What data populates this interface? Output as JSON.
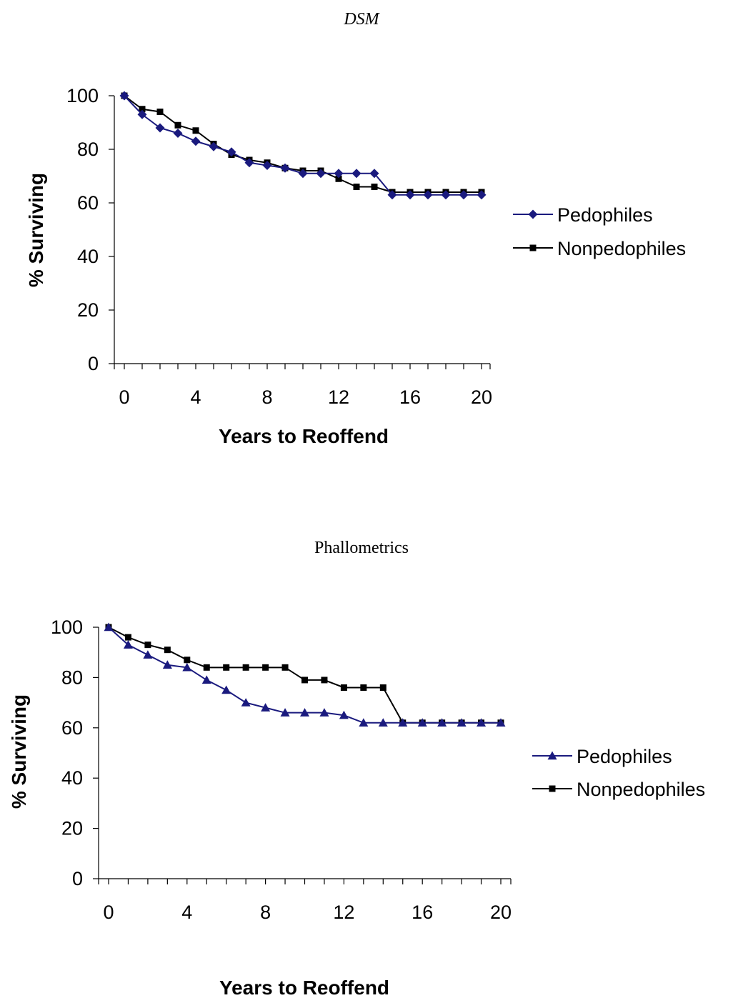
{
  "chart_data": [
    {
      "type": "line",
      "title": "DSM",
      "xlabel": "Years to Reoffend",
      "ylabel": "% Surviving",
      "xlim": [
        0,
        20
      ],
      "ylim": [
        0,
        100
      ],
      "x_ticks": [
        "0",
        "4",
        "8",
        "12",
        "16",
        "20"
      ],
      "y_ticks": [
        "0",
        "20",
        "40",
        "60",
        "80",
        "100"
      ],
      "legend_position": "right",
      "x": [
        0,
        1,
        2,
        3,
        4,
        5,
        6,
        7,
        8,
        9,
        10,
        11,
        12,
        13,
        14,
        15,
        16,
        17,
        18,
        19,
        20
      ],
      "series": [
        {
          "name": "Pedophiles",
          "marker": "diamond",
          "color": "#1a1a7e",
          "values": [
            100,
            93,
            88,
            86,
            83,
            81,
            79,
            75,
            74,
            73,
            71,
            71,
            71,
            71,
            71,
            63,
            63,
            63,
            63,
            63,
            63
          ]
        },
        {
          "name": "Nonpedophiles",
          "marker": "square",
          "color": "#000000",
          "values": [
            100,
            95,
            94,
            89,
            87,
            82,
            78,
            76,
            75,
            73,
            72,
            72,
            69,
            66,
            66,
            64,
            64,
            64,
            64,
            64,
            64
          ]
        }
      ]
    },
    {
      "type": "line",
      "title": "Phallometrics",
      "xlabel": "Years to Reoffend",
      "ylabel": "% Surviving",
      "xlim": [
        0,
        20
      ],
      "ylim": [
        0,
        100
      ],
      "x_ticks": [
        "0",
        "4",
        "8",
        "12",
        "16",
        "20"
      ],
      "y_ticks": [
        "0",
        "20",
        "40",
        "60",
        "80",
        "100"
      ],
      "legend_position": "right",
      "x": [
        0,
        1,
        2,
        3,
        4,
        5,
        6,
        7,
        8,
        9,
        10,
        11,
        12,
        13,
        14,
        15,
        16,
        17,
        18,
        19,
        20
      ],
      "series": [
        {
          "name": "Pedophiles",
          "marker": "triangle",
          "color": "#1a1a7e",
          "values": [
            100,
            93,
            89,
            85,
            84,
            79,
            75,
            70,
            68,
            66,
            66,
            66,
            65,
            62,
            62,
            62,
            62,
            62,
            62,
            62,
            62
          ]
        },
        {
          "name": "Nonpedophiles",
          "marker": "square",
          "color": "#000000",
          "values": [
            100,
            96,
            93,
            91,
            87,
            84,
            84,
            84,
            84,
            84,
            79,
            79,
            76,
            76,
            76,
            62,
            62,
            62,
            62,
            62,
            62
          ]
        }
      ]
    }
  ]
}
